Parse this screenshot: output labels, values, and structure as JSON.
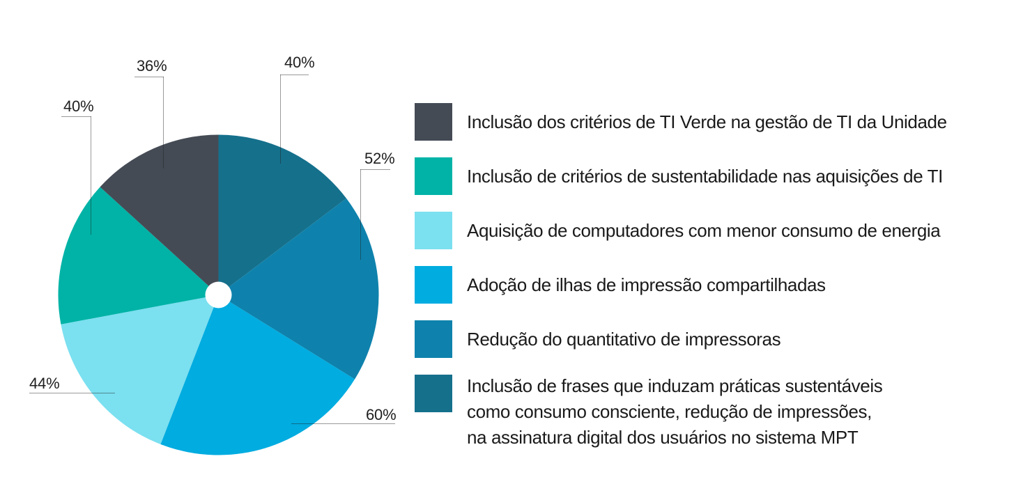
{
  "chart_data": {
    "type": "pie",
    "unit": "%",
    "direction": "clockwise",
    "start_angle_deg": 0,
    "radius_px": 230,
    "hole_radius_px": 19,
    "hole_color": "#ffffff",
    "slices": [
      {
        "label": "Inclusão de frases que induzam práticas sustentáveis como consumo consciente, redução de impressões, na assinatura digital dos usuários no sistema MPT",
        "value": 40,
        "display": "40%",
        "color": "#15708C"
      },
      {
        "label": "Redução do quantitativo de impressoras",
        "value": 52,
        "display": "52%",
        "color": "#0E82AC"
      },
      {
        "label": "Adoção de ilhas de impressão compartilhadas",
        "value": 60,
        "display": "60%",
        "color": "#00ACE0"
      },
      {
        "label": "Aquisição de computadores com menor consumo de energia",
        "value": 44,
        "display": "44%",
        "color": "#7BE0F0"
      },
      {
        "label": "Inclusão de critérios de sustentabilidade nas aquisições de TI",
        "value": 40,
        "display": "40%",
        "color": "#00B3A6"
      },
      {
        "label": "Inclusão dos critérios de TI Verde na gestão de TI da Unidade",
        "value": 36,
        "display": "36%",
        "color": "#454B55"
      }
    ]
  },
  "legend": {
    "items": [
      {
        "label": "Inclusão dos critérios de TI Verde na gestão de TI da Unidade",
        "color": "#454B55"
      },
      {
        "label": "Inclusão de critérios de sustentabilidade nas aquisições de TI",
        "color": "#00B3A6"
      },
      {
        "label": "Aquisição de computadores com menor consumo de energia",
        "color": "#7BE0F0"
      },
      {
        "label": "Adoção de ilhas de impressão compartilhadas",
        "color": "#00ACE0"
      },
      {
        "label": "Redução do quantitativo de impressoras",
        "color": "#0E82AC"
      },
      {
        "label": "Inclusão de frases que induzam práticas sustentáveis como consumo consciente, redução de impressões, na assinatura digital dos usuários no sistema MPT",
        "color": "#15708C",
        "lines": [
          "Inclusão de frases que induzam práticas sustentáveis",
          "como consumo consciente, redução de impressões,",
          "na assinatura digital dos usuários no sistema MPT"
        ]
      }
    ]
  }
}
